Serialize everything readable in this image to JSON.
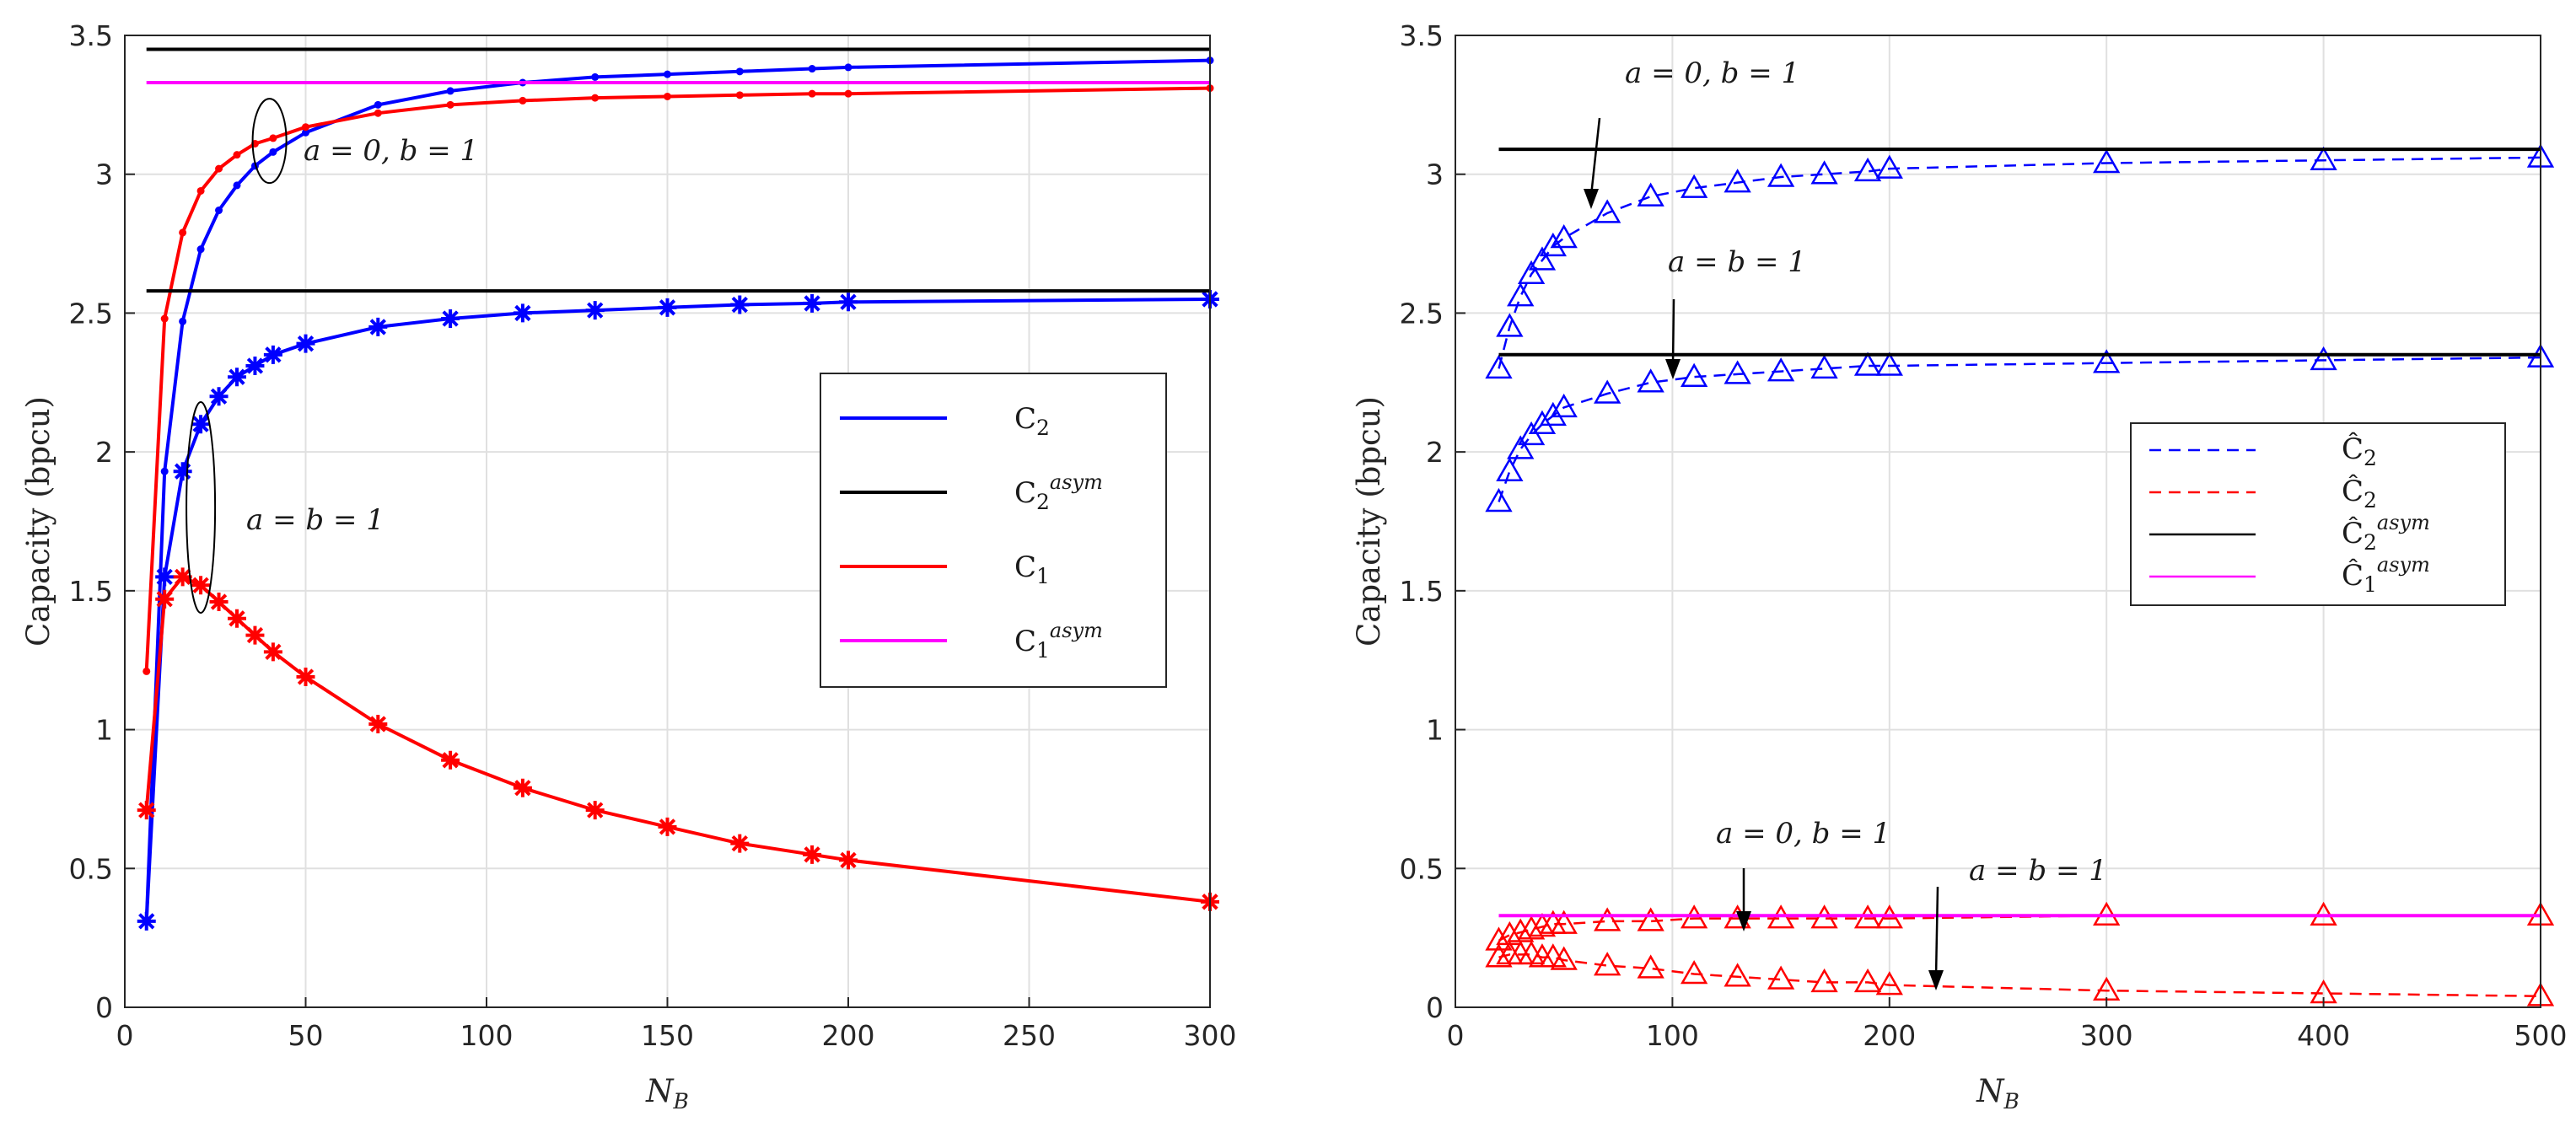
{
  "chart_data": [
    {
      "type": "line",
      "xlabel": "N_B",
      "ylabel": "Capacity (bpcu)",
      "xlim": [
        0,
        300
      ],
      "ylim": [
        0,
        3.5
      ],
      "xticks": [
        "0",
        "50",
        "100",
        "150",
        "200",
        "250",
        "300"
      ],
      "yticks": [
        "0",
        "0.5",
        "1",
        "1.5",
        "2",
        "2.5",
        "3",
        "3.5"
      ],
      "grid": true,
      "legend_position": "center-right",
      "legend": [
        "C_2",
        "C_2^asym",
        "C_1",
        "C_1^asym"
      ],
      "annotations": [
        "a = 0, b = 1",
        "a = b = 1"
      ],
      "series": [
        {
          "name": "C_2 (a = 0, b = 1)",
          "color": "#0000ff",
          "marker": "dot",
          "x": [
            6,
            11,
            16,
            21,
            26,
            31,
            36,
            41,
            50,
            70,
            90,
            110,
            130,
            150,
            170,
            190,
            200,
            300
          ],
          "y": [
            0.31,
            1.93,
            2.47,
            2.73,
            2.87,
            2.96,
            3.03,
            3.08,
            3.15,
            3.25,
            3.3,
            3.33,
            3.35,
            3.36,
            3.37,
            3.38,
            3.385,
            3.41
          ]
        },
        {
          "name": "C_1 (a = 0, b = 1)",
          "color": "#ff0000",
          "marker": "dot",
          "x": [
            6,
            11,
            16,
            21,
            26,
            31,
            36,
            41,
            50,
            70,
            90,
            110,
            130,
            150,
            170,
            190,
            200,
            300
          ],
          "y": [
            1.21,
            2.48,
            2.79,
            2.94,
            3.02,
            3.07,
            3.11,
            3.13,
            3.17,
            3.22,
            3.25,
            3.265,
            3.275,
            3.28,
            3.285,
            3.29,
            3.29,
            3.31
          ]
        },
        {
          "name": "C_2 (a = b = 1)",
          "color": "#0000ff",
          "marker": "star",
          "x": [
            6,
            11,
            16,
            21,
            26,
            31,
            36,
            41,
            50,
            70,
            90,
            110,
            130,
            150,
            170,
            190,
            200,
            300
          ],
          "y": [
            0.31,
            1.55,
            1.93,
            2.1,
            2.2,
            2.27,
            2.31,
            2.35,
            2.39,
            2.45,
            2.48,
            2.5,
            2.51,
            2.52,
            2.53,
            2.535,
            2.54,
            2.55
          ]
        },
        {
          "name": "C_1 (a = b = 1)",
          "color": "#ff0000",
          "marker": "star",
          "x": [
            6,
            11,
            16,
            21,
            26,
            31,
            36,
            41,
            50,
            70,
            90,
            110,
            130,
            150,
            170,
            190,
            200,
            300
          ],
          "y": [
            0.71,
            1.47,
            1.55,
            1.52,
            1.46,
            1.4,
            1.34,
            1.28,
            1.19,
            1.02,
            0.89,
            0.79,
            0.71,
            0.65,
            0.59,
            0.55,
            0.53,
            0.38
          ]
        },
        {
          "name": "C_2^asym (a = 0, b = 1)",
          "color": "#000000",
          "marker": "none",
          "x": [
            6,
            300
          ],
          "y": [
            3.45,
            3.45
          ]
        },
        {
          "name": "C_1^asym (a = 0, b = 1)",
          "color": "#ff00ff",
          "marker": "none",
          "x": [
            6,
            300
          ],
          "y": [
            3.33,
            3.33
          ]
        },
        {
          "name": "C_2^asym (a = b = 1)",
          "color": "#000000",
          "marker": "none",
          "x": [
            6,
            300
          ],
          "y": [
            2.58,
            2.58
          ]
        }
      ]
    },
    {
      "type": "line",
      "xlabel": "N_B",
      "ylabel": "Capacity (bpcu)",
      "xlim": [
        0,
        500
      ],
      "ylim": [
        0,
        3.5
      ],
      "xticks": [
        "0",
        "100",
        "200",
        "300",
        "400",
        "500"
      ],
      "yticks": [
        "0",
        "0.5",
        "1",
        "1.5",
        "2",
        "2.5",
        "3",
        "3.5"
      ],
      "grid": true,
      "legend_position": "center-right",
      "legend": [
        "Ĉ_2",
        "Ĉ_2",
        "Ĉ_2^asym",
        "Ĉ_1^asym"
      ],
      "annotations": [
        "a = 0, b = 1",
        "a = b = 1",
        "a = 0, b = 1",
        "a = b = 1"
      ],
      "series": [
        {
          "name": "Ĉ_2 (a = 0, b = 1)",
          "color": "#0000ff",
          "marker": "triangle",
          "dashed": true,
          "x": [
            20,
            25,
            30,
            35,
            40,
            45,
            50,
            70,
            90,
            110,
            130,
            150,
            170,
            190,
            200,
            300,
            400,
            500
          ],
          "y": [
            2.3,
            2.45,
            2.56,
            2.64,
            2.69,
            2.74,
            2.77,
            2.86,
            2.92,
            2.95,
            2.97,
            2.99,
            3.0,
            3.01,
            3.02,
            3.04,
            3.05,
            3.06
          ]
        },
        {
          "name": "Ĉ_2 (a = b = 1)",
          "color": "#0000ff",
          "marker": "triangle",
          "dashed": true,
          "x": [
            20,
            25,
            30,
            35,
            40,
            45,
            50,
            70,
            90,
            110,
            130,
            150,
            170,
            190,
            200,
            300,
            400,
            500
          ],
          "y": [
            1.82,
            1.93,
            2.01,
            2.06,
            2.1,
            2.13,
            2.16,
            2.21,
            2.25,
            2.27,
            2.28,
            2.29,
            2.3,
            2.31,
            2.31,
            2.32,
            2.33,
            2.34
          ]
        },
        {
          "name": "Ĉ_1 (a = 0, b = 1)",
          "color": "#ff0000",
          "marker": "triangle",
          "dashed": true,
          "x": [
            20,
            25,
            30,
            35,
            40,
            45,
            50,
            70,
            90,
            110,
            130,
            150,
            170,
            190,
            200,
            300,
            400,
            500
          ],
          "y": [
            0.24,
            0.26,
            0.27,
            0.28,
            0.29,
            0.3,
            0.3,
            0.31,
            0.31,
            0.32,
            0.32,
            0.32,
            0.32,
            0.32,
            0.32,
            0.33,
            0.33,
            0.33
          ]
        },
        {
          "name": "Ĉ_1 (a = b = 1)",
          "color": "#ff0000",
          "marker": "triangle",
          "dashed": true,
          "x": [
            20,
            25,
            30,
            35,
            40,
            45,
            50,
            70,
            90,
            110,
            130,
            150,
            170,
            190,
            200,
            300,
            400,
            500
          ],
          "y": [
            0.18,
            0.19,
            0.19,
            0.19,
            0.18,
            0.18,
            0.17,
            0.15,
            0.14,
            0.12,
            0.11,
            0.1,
            0.09,
            0.09,
            0.08,
            0.06,
            0.05,
            0.04
          ]
        },
        {
          "name": "Ĉ_2^asym (a = 0, b = 1)",
          "color": "#000000",
          "marker": "none",
          "x": [
            20,
            500
          ],
          "y": [
            3.09,
            3.09
          ]
        },
        {
          "name": "Ĉ_2^asym (a = b = 1)",
          "color": "#000000",
          "marker": "none",
          "x": [
            20,
            500
          ],
          "y": [
            2.35,
            2.35
          ]
        },
        {
          "name": "Ĉ_1^asym",
          "color": "#ff00ff",
          "marker": "none",
          "x": [
            20,
            500
          ],
          "y": [
            0.33,
            0.33
          ]
        }
      ]
    }
  ]
}
